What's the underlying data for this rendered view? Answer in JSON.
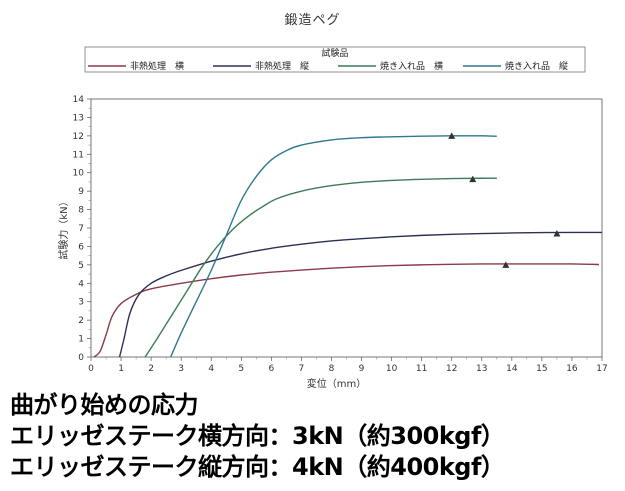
{
  "chart_data": {
    "type": "line",
    "title": "鍛造ペグ",
    "legend_title": "試験品",
    "xlabel": "変位（mm）",
    "ylabel": "試験力（kN）",
    "xlim": [
      0,
      17
    ],
    "ylim": [
      0,
      14
    ],
    "x_ticks": [
      "0",
      "1",
      "2",
      "3",
      "4",
      "5",
      "6",
      "7",
      "8",
      "9",
      "10",
      "11",
      "12",
      "13",
      "14",
      "15",
      "16",
      "17"
    ],
    "y_ticks": [
      "0",
      "1",
      "2",
      "3",
      "4",
      "5",
      "6",
      "7",
      "8",
      "9",
      "10",
      "11",
      "12",
      "13",
      "14"
    ],
    "grid": false,
    "legend_position": "top",
    "series": [
      {
        "name": "非熱処理　横",
        "color": "#8b3a48",
        "points": [
          [
            0.1,
            0
          ],
          [
            0.3,
            0.3
          ],
          [
            0.5,
            1.2
          ],
          [
            0.7,
            2.2
          ],
          [
            1.0,
            2.9
          ],
          [
            1.5,
            3.4
          ],
          [
            2.0,
            3.7
          ],
          [
            3.0,
            4.0
          ],
          [
            4.0,
            4.25
          ],
          [
            5.0,
            4.45
          ],
          [
            6.0,
            4.6
          ],
          [
            7.0,
            4.72
          ],
          [
            8.0,
            4.82
          ],
          [
            9.0,
            4.9
          ],
          [
            10.0,
            4.96
          ],
          [
            11.0,
            5.0
          ],
          [
            12.0,
            5.03
          ],
          [
            13.0,
            5.05
          ],
          [
            14.0,
            5.05
          ],
          [
            15.0,
            5.05
          ],
          [
            16.0,
            5.05
          ],
          [
            16.9,
            5.02
          ]
        ],
        "marker": [
          13.8,
          5.0
        ]
      },
      {
        "name": "非熱処理　縦",
        "color": "#2d3055",
        "points": [
          [
            0.95,
            0
          ],
          [
            1.1,
            1.0
          ],
          [
            1.3,
            2.4
          ],
          [
            1.6,
            3.4
          ],
          [
            2.0,
            4.0
          ],
          [
            2.5,
            4.4
          ],
          [
            3.0,
            4.7
          ],
          [
            4.0,
            5.2
          ],
          [
            5.0,
            5.6
          ],
          [
            6.0,
            5.9
          ],
          [
            7.0,
            6.12
          ],
          [
            8.0,
            6.3
          ],
          [
            9.0,
            6.42
          ],
          [
            10.0,
            6.52
          ],
          [
            11.0,
            6.6
          ],
          [
            12.0,
            6.66
          ],
          [
            13.0,
            6.7
          ],
          [
            14.0,
            6.73
          ],
          [
            15.0,
            6.75
          ],
          [
            16.0,
            6.76
          ],
          [
            17.0,
            6.76
          ]
        ],
        "marker": [
          15.5,
          6.7
        ]
      },
      {
        "name": "焼き入れ品　横",
        "color": "#3d7a58",
        "points": [
          [
            1.8,
            0
          ],
          [
            2.2,
            1.0
          ],
          [
            2.7,
            2.3
          ],
          [
            3.2,
            3.6
          ],
          [
            3.7,
            4.9
          ],
          [
            4.2,
            6.0
          ],
          [
            4.7,
            6.9
          ],
          [
            5.2,
            7.6
          ],
          [
            5.7,
            8.15
          ],
          [
            6.2,
            8.6
          ],
          [
            7.0,
            9.0
          ],
          [
            8.0,
            9.3
          ],
          [
            9.0,
            9.48
          ],
          [
            10.0,
            9.58
          ],
          [
            11.0,
            9.64
          ],
          [
            12.0,
            9.68
          ],
          [
            13.0,
            9.7
          ],
          [
            13.5,
            9.7
          ]
        ],
        "marker": [
          12.7,
          9.65
        ]
      },
      {
        "name": "焼き入れ品　縦",
        "color": "#2e7890",
        "points": [
          [
            2.65,
            0
          ],
          [
            3.0,
            1.3
          ],
          [
            3.5,
            3.0
          ],
          [
            4.0,
            4.7
          ],
          [
            4.5,
            6.6
          ],
          [
            5.0,
            8.5
          ],
          [
            5.5,
            9.8
          ],
          [
            6.0,
            10.7
          ],
          [
            6.5,
            11.2
          ],
          [
            7.0,
            11.5
          ],
          [
            8.0,
            11.78
          ],
          [
            9.0,
            11.9
          ],
          [
            10.0,
            11.95
          ],
          [
            11.0,
            11.98
          ],
          [
            12.0,
            12.0
          ],
          [
            13.0,
            12.0
          ],
          [
            13.5,
            11.98
          ]
        ],
        "marker": [
          12.0,
          12.0
        ]
      }
    ]
  },
  "captions": [
    "曲がり始めの応力",
    "エリッゼステーク横方向：3kN（約300kgf）",
    "エリッゼステーク縦方向：4kN（約400kgf）"
  ]
}
